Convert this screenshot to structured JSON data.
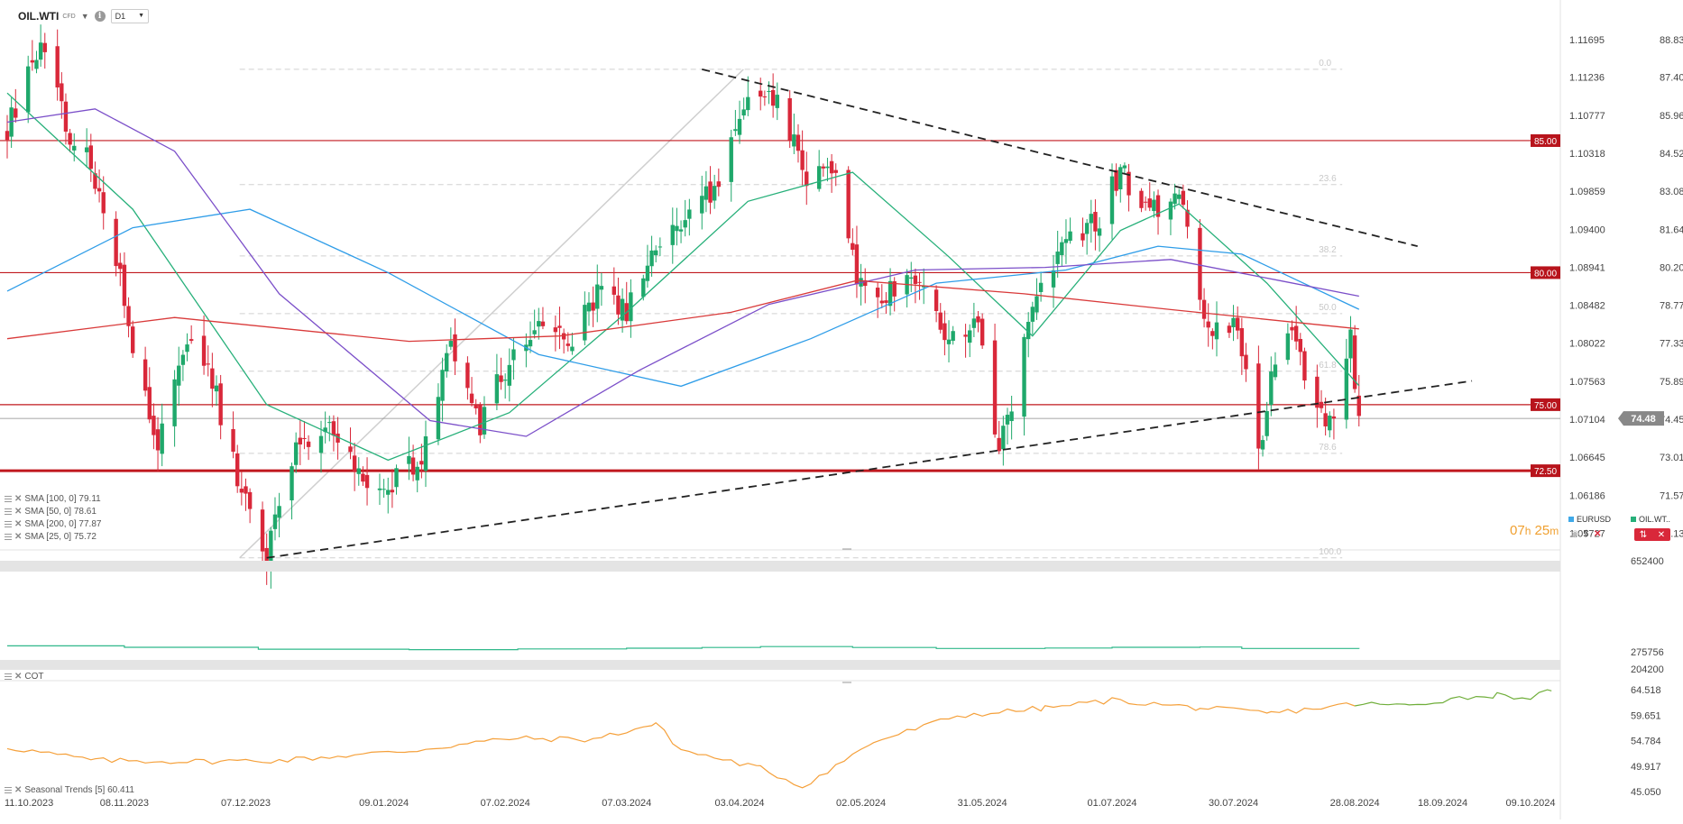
{
  "header": {
    "symbol": "OIL.WTI",
    "instrument_type": "CFD",
    "timeframe": "D1",
    "icons": [
      "chevron-down-icon",
      "info-icon",
      "chevron-down-icon"
    ]
  },
  "indicator_legend": [
    {
      "label": "SMA [100, 0] 79.11",
      "color": "#7b4fc9"
    },
    {
      "label": "SMA [50, 0] 78.61",
      "color": "#2f9de8"
    },
    {
      "label": "SMA [200, 0] 77.87",
      "color": "#d93a3a"
    },
    {
      "label": "SMA [25, 0] 75.72",
      "color": "#27b07a"
    }
  ],
  "price_axis_right": [
    "88.83",
    "87.40",
    "85.96",
    "84.52",
    "83.08",
    "81.64",
    "80.20",
    "78.77",
    "77.33",
    "75.89",
    "74.45",
    "73.01",
    "71.57",
    "70.13"
  ],
  "price_axis_left": [
    "1.11695",
    "1.11236",
    "1.10777",
    "1.10318",
    "1.09859",
    "1.09400",
    "1.08941",
    "1.08482",
    "1.08022",
    "1.07563",
    "1.07104",
    "1.06645",
    "1.06186",
    "1.05727"
  ],
  "level_labels": [
    "85.00",
    "80.00",
    "75.00",
    "72.50"
  ],
  "current_price": "74.48",
  "fib_labels": [
    "0.0",
    "23.6",
    "38.2",
    "50.0",
    "61.8",
    "78.6",
    "100.0"
  ],
  "timer": {
    "h": "07",
    "h_unit": "h",
    "m": "25",
    "m_unit": "m"
  },
  "compare_legend": [
    {
      "label": "EURUSD",
      "color": "#3fa9e8"
    },
    {
      "label": "OIL.WT..",
      "color": "#27b07a"
    }
  ],
  "volume_axis": [
    "652400",
    "275756",
    "204200"
  ],
  "cot_label": "COT",
  "seasonal_label": "Seasonal  Trends [5] 60.411",
  "seasonal_axis": [
    "64.518",
    "59.651",
    "54.784",
    "49.917",
    "45.050"
  ],
  "x_axis_dates": [
    "11.10.2023",
    "08.11.2023",
    "07.12.2023",
    "09.01.2024",
    "07.02.2024",
    "07.03.2024",
    "03.04.2024",
    "02.05.2024",
    "31.05.2024",
    "01.07.2024",
    "30.07.2024",
    "28.08.2024",
    "18.09.2024",
    "09.10.2024"
  ],
  "chart_data": {
    "type": "candlestick",
    "symbol": "OIL.WTI",
    "timeframe": "D1",
    "ylim": [
      69.5,
      89.3
    ],
    "horizontal_levels": [
      85.0,
      80.0,
      75.0,
      72.5
    ],
    "current_price": 74.48,
    "anchors": [
      [
        "2023-10-11",
        85.5
      ],
      [
        "2023-10-16",
        87.5
      ],
      [
        "2023-10-20",
        88.6
      ],
      [
        "2023-10-25",
        85.5
      ],
      [
        "2023-10-31",
        84.2
      ],
      [
        "2023-11-06",
        80.6
      ],
      [
        "2023-11-10",
        77.0
      ],
      [
        "2023-11-16",
        73.2
      ],
      [
        "2023-11-22",
        77.2
      ],
      [
        "2023-11-28",
        76.5
      ],
      [
        "2023-12-05",
        72.3
      ],
      [
        "2023-12-12",
        69.2
      ],
      [
        "2023-12-20",
        73.8
      ],
      [
        "2023-12-28",
        74.0
      ],
      [
        "2024-01-03",
        72.5
      ],
      [
        "2024-01-10",
        71.8
      ],
      [
        "2024-01-18",
        73.2
      ],
      [
        "2024-01-25",
        77.6
      ],
      [
        "2024-02-01",
        74.3
      ],
      [
        "2024-02-08",
        76.8
      ],
      [
        "2024-02-15",
        78.4
      ],
      [
        "2024-02-22",
        77.2
      ],
      [
        "2024-02-29",
        79.3
      ],
      [
        "2024-03-07",
        78.5
      ],
      [
        "2024-03-14",
        81.0
      ],
      [
        "2024-03-21",
        81.8
      ],
      [
        "2024-03-28",
        83.2
      ],
      [
        "2024-04-05",
        86.8
      ],
      [
        "2024-04-12",
        86.3
      ],
      [
        "2024-04-19",
        83.6
      ],
      [
        "2024-04-26",
        83.8
      ],
      [
        "2024-05-02",
        79.3
      ],
      [
        "2024-05-09",
        79.2
      ],
      [
        "2024-05-16",
        79.6
      ],
      [
        "2024-05-23",
        77.2
      ],
      [
        "2024-05-30",
        78.0
      ],
      [
        "2024-06-04",
        73.3
      ],
      [
        "2024-06-12",
        78.4
      ],
      [
        "2024-06-20",
        81.3
      ],
      [
        "2024-06-27",
        81.8
      ],
      [
        "2024-07-03",
        83.9
      ],
      [
        "2024-07-10",
        82.2
      ],
      [
        "2024-07-17",
        82.9
      ],
      [
        "2024-07-24",
        77.6
      ],
      [
        "2024-07-31",
        77.9
      ],
      [
        "2024-08-05",
        73.2
      ],
      [
        "2024-08-09",
        76.8
      ],
      [
        "2024-08-13",
        78.3
      ],
      [
        "2024-08-19",
        74.5
      ],
      [
        "2024-08-23",
        74.8
      ],
      [
        "2024-08-27",
        77.4
      ],
      [
        "2024-08-29",
        74.48
      ]
    ],
    "sma_series": [
      {
        "name": "SMA [25, 0] 75.72",
        "color": "#27b07a",
        "points": [
          [
            "2023-10-11",
            86.8
          ],
          [
            "2023-11-10",
            82.4
          ],
          [
            "2023-12-12",
            75.0
          ],
          [
            "2024-01-10",
            72.9
          ],
          [
            "2024-02-08",
            74.7
          ],
          [
            "2024-03-07",
            78.5
          ],
          [
            "2024-04-05",
            82.7
          ],
          [
            "2024-04-30",
            83.8
          ],
          [
            "2024-05-23",
            80.6
          ],
          [
            "2024-06-12",
            77.6
          ],
          [
            "2024-07-03",
            81.6
          ],
          [
            "2024-07-17",
            82.6
          ],
          [
            "2024-08-07",
            79.6
          ],
          [
            "2024-08-29",
            75.72
          ]
        ]
      },
      {
        "name": "SMA [50, 0] 78.61",
        "color": "#2f9de8",
        "points": [
          [
            "2023-10-11",
            79.3
          ],
          [
            "2023-11-10",
            81.7
          ],
          [
            "2023-12-08",
            82.4
          ],
          [
            "2024-01-10",
            80.0
          ],
          [
            "2024-02-15",
            76.9
          ],
          [
            "2024-03-20",
            75.7
          ],
          [
            "2024-04-20",
            77.5
          ],
          [
            "2024-05-20",
            79.6
          ],
          [
            "2024-06-20",
            80.1
          ],
          [
            "2024-07-12",
            81.0
          ],
          [
            "2024-08-01",
            80.7
          ],
          [
            "2024-08-29",
            78.61
          ]
        ]
      },
      {
        "name": "SMA [100, 0] 79.11",
        "color": "#7b4fc9",
        "points": [
          [
            "2023-10-11",
            85.7
          ],
          [
            "2023-11-01",
            86.2
          ],
          [
            "2023-11-20",
            84.6
          ],
          [
            "2023-12-15",
            79.2
          ],
          [
            "2024-01-20",
            74.4
          ],
          [
            "2024-02-12",
            73.8
          ],
          [
            "2024-03-10",
            76.3
          ],
          [
            "2024-04-10",
            78.8
          ],
          [
            "2024-05-15",
            80.1
          ],
          [
            "2024-06-15",
            80.2
          ],
          [
            "2024-07-15",
            80.5
          ],
          [
            "2024-08-10",
            79.7
          ],
          [
            "2024-08-29",
            79.11
          ]
        ]
      },
      {
        "name": "SMA [200, 0] 77.87",
        "color": "#d93a3a",
        "points": [
          [
            "2023-10-11",
            77.5
          ],
          [
            "2023-11-20",
            78.3
          ],
          [
            "2024-01-15",
            77.4
          ],
          [
            "2024-02-20",
            77.6
          ],
          [
            "2024-04-01",
            78.5
          ],
          [
            "2024-05-01",
            79.7
          ],
          [
            "2024-06-10",
            79.2
          ],
          [
            "2024-07-15",
            78.6
          ],
          [
            "2024-08-29",
            77.87
          ]
        ]
      }
    ],
    "trendlines": [
      {
        "from": [
          "2024-03-25",
          87.7
        ],
        "to": [
          "2024-09-12",
          81.0
        ],
        "style": "dashed"
      },
      {
        "from": [
          "2023-12-12",
          69.2
        ],
        "to": [
          "2024-09-25",
          75.9
        ],
        "style": "dashed"
      }
    ],
    "fibonacci": {
      "from": [
        "2023-12-12",
        69.2
      ],
      "to": [
        "2024-04-05",
        87.7
      ],
      "levels": [
        0.0,
        23.6,
        38.2,
        50.0,
        61.8,
        78.6,
        100.0
      ]
    },
    "volume_panel": {
      "ylim": [
        204200,
        652400
      ],
      "points": [
        [
          "2023-10-11",
          300000
        ],
        [
          "2023-11-08",
          294000
        ],
        [
          "2023-12-10",
          286000
        ],
        [
          "2024-01-15",
          284000
        ],
        [
          "2024-02-10",
          287000
        ],
        [
          "2024-03-07",
          290000
        ],
        [
          "2024-03-25",
          293000
        ],
        [
          "2024-04-08",
          297000
        ],
        [
          "2024-04-30",
          293000
        ],
        [
          "2024-05-20",
          289000
        ],
        [
          "2024-06-15",
          291000
        ],
        [
          "2024-07-01",
          294000
        ],
        [
          "2024-07-22",
          295000
        ],
        [
          "2024-08-01",
          289000
        ],
        [
          "2024-08-29",
          288000
        ]
      ]
    },
    "seasonal_panel": {
      "ylim": [
        45.05,
        64.518
      ],
      "split_date": "2024-08-28",
      "points": [
        [
          "2023-10-11",
          53.5
        ],
        [
          "2023-11-01",
          51.0
        ],
        [
          "2023-11-25",
          50.8
        ],
        [
          "2023-12-15",
          51.0
        ],
        [
          "2024-01-15",
          52.8
        ],
        [
          "2024-02-08",
          55.2
        ],
        [
          "2024-02-28",
          55.0
        ],
        [
          "2024-03-14",
          58.0
        ],
        [
          "2024-03-20",
          53.0
        ],
        [
          "2024-04-08",
          49.5
        ],
        [
          "2024-04-18",
          46.0
        ],
        [
          "2024-05-05",
          54.5
        ],
        [
          "2024-05-25",
          59.5
        ],
        [
          "2024-06-15",
          61.0
        ],
        [
          "2024-07-01",
          62.5
        ],
        [
          "2024-07-22",
          61.0
        ],
        [
          "2024-08-08",
          60.0
        ],
        [
          "2024-08-28",
          61.8
        ],
        [
          "2024-09-10",
          61.5
        ],
        [
          "2024-09-20",
          62.8
        ],
        [
          "2024-10-01",
          63.5
        ],
        [
          "2024-10-09",
          63.0
        ],
        [
          "2024-10-14",
          64.3
        ]
      ]
    }
  }
}
